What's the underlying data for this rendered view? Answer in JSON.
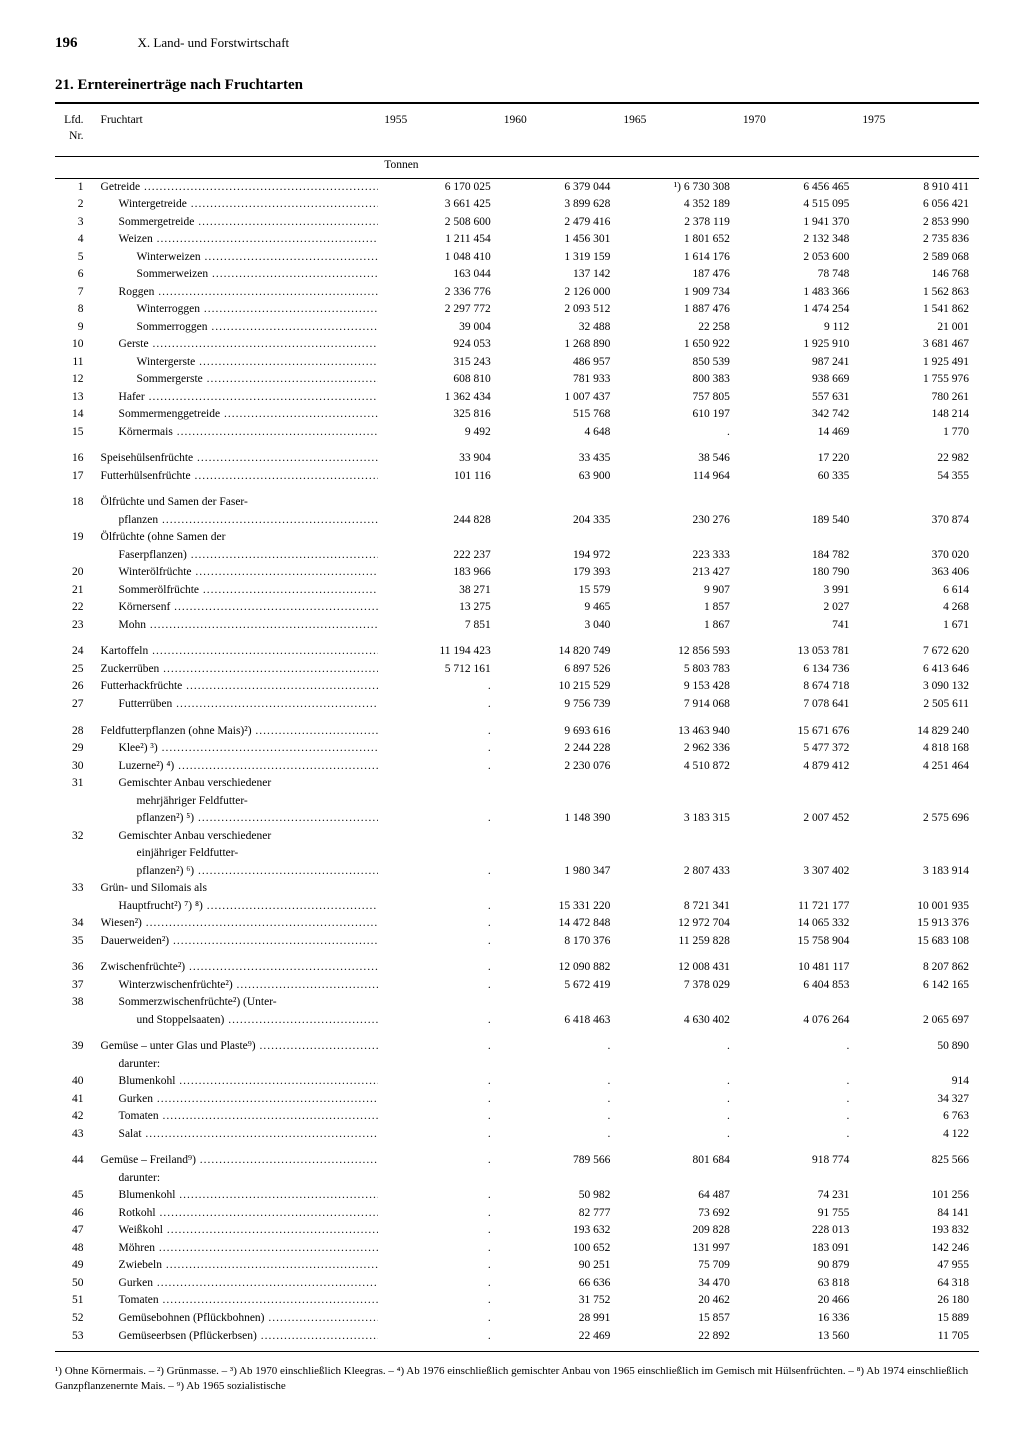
{
  "page_number": "196",
  "chapter": "X. Land- und Forstwirtschaft",
  "title": "21. Erntereinerträge nach Fruchtarten",
  "columns": {
    "nr": "Lfd. Nr.",
    "name": "Fruchtart",
    "y1955": "1955",
    "y1960": "1960",
    "y1965": "1965",
    "y1970": "1970",
    "y1975": "1975",
    "unit": "Tonnen"
  },
  "footnote": "¹) Ohne Körnermais. – ²) Grünmasse. – ³) Ab 1970 einschließlich Kleegras. – ⁴) Ab 1976 einschließlich gemischter Anbau von 1965 einschließlich im Gemisch mit Hülsenfrüchten. – ⁸) Ab 1974 einschließlich Ganzpflanzenernte Mais. – ⁹) Ab 1965 sozialistische",
  "rows": [
    {
      "nr": "1",
      "ind": 0,
      "name": "Getreide",
      "v": [
        "6 170 025",
        "6 379 044",
        "¹) 6 730 308",
        "6 456 465",
        "8 910 411"
      ]
    },
    {
      "nr": "2",
      "ind": 1,
      "name": "Wintergetreide",
      "v": [
        "3 661 425",
        "3 899 628",
        "4 352 189",
        "4 515 095",
        "6 056 421"
      ]
    },
    {
      "nr": "3",
      "ind": 1,
      "name": "Sommergetreide",
      "v": [
        "2 508 600",
        "2 479 416",
        "2 378 119",
        "1 941 370",
        "2 853 990"
      ]
    },
    {
      "nr": "4",
      "ind": 1,
      "name": "Weizen",
      "v": [
        "1 211 454",
        "1 456 301",
        "1 801 652",
        "2 132 348",
        "2 735 836"
      ]
    },
    {
      "nr": "5",
      "ind": 2,
      "name": "Winterweizen",
      "v": [
        "1 048 410",
        "1 319 159",
        "1 614 176",
        "2 053 600",
        "2 589 068"
      ]
    },
    {
      "nr": "6",
      "ind": 2,
      "name": "Sommerweizen",
      "v": [
        "163 044",
        "137 142",
        "187 476",
        "78 748",
        "146 768"
      ]
    },
    {
      "nr": "7",
      "ind": 1,
      "name": "Roggen",
      "v": [
        "2 336 776",
        "2 126 000",
        "1 909 734",
        "1 483 366",
        "1 562 863"
      ]
    },
    {
      "nr": "8",
      "ind": 2,
      "name": "Winterroggen",
      "v": [
        "2 297 772",
        "2 093 512",
        "1 887 476",
        "1 474 254",
        "1 541 862"
      ]
    },
    {
      "nr": "9",
      "ind": 2,
      "name": "Sommerroggen",
      "v": [
        "39 004",
        "32 488",
        "22 258",
        "9 112",
        "21 001"
      ]
    },
    {
      "nr": "10",
      "ind": 1,
      "name": "Gerste",
      "v": [
        "924 053",
        "1 268 890",
        "1 650 922",
        "1 925 910",
        "3 681 467"
      ]
    },
    {
      "nr": "11",
      "ind": 2,
      "name": "Wintergerste",
      "v": [
        "315 243",
        "486 957",
        "850 539",
        "987 241",
        "1 925 491"
      ]
    },
    {
      "nr": "12",
      "ind": 2,
      "name": "Sommergerste",
      "v": [
        "608 810",
        "781 933",
        "800 383",
        "938 669",
        "1 755 976"
      ]
    },
    {
      "nr": "13",
      "ind": 1,
      "name": "Hafer",
      "v": [
        "1 362 434",
        "1 007 437",
        "757 805",
        "557 631",
        "780 261"
      ]
    },
    {
      "nr": "14",
      "ind": 1,
      "name": "Sommermenggetreide",
      "v": [
        "325 816",
        "515 768",
        "610 197",
        "342 742",
        "148 214"
      ]
    },
    {
      "nr": "15",
      "ind": 1,
      "name": "Körnermais",
      "v": [
        "9 492",
        "4 648",
        ".",
        "14 469",
        "1 770"
      ]
    },
    {
      "spacer": true
    },
    {
      "nr": "16",
      "ind": 0,
      "name": "Speisehülsenfrüchte",
      "v": [
        "33 904",
        "33 435",
        "38 546",
        "17 220",
        "22 982"
      ]
    },
    {
      "nr": "17",
      "ind": 0,
      "name": "Futterhülsenfrüchte",
      "v": [
        "101 116",
        "63 900",
        "114 964",
        "60 335",
        "54 355"
      ]
    },
    {
      "spacer": true
    },
    {
      "nr": "18",
      "ind": 0,
      "nodots": true,
      "name": "Ölfrüchte und Samen der Faser-",
      "v": [
        "",
        "",
        "",
        "",
        ""
      ]
    },
    {
      "nr": "",
      "ind": 1,
      "name": "pflanzen",
      "v": [
        "244 828",
        "204 335",
        "230 276",
        "189 540",
        "370 874"
      ]
    },
    {
      "nr": "19",
      "ind": 0,
      "nodots": true,
      "name": "Ölfrüchte (ohne Samen der",
      "v": [
        "",
        "",
        "",
        "",
        ""
      ]
    },
    {
      "nr": "",
      "ind": 1,
      "name": "Faserpflanzen)",
      "v": [
        "222 237",
        "194 972",
        "223 333",
        "184 782",
        "370 020"
      ]
    },
    {
      "nr": "20",
      "ind": 1,
      "name": "Winterölfrüchte",
      "v": [
        "183 966",
        "179 393",
        "213 427",
        "180 790",
        "363 406"
      ]
    },
    {
      "nr": "21",
      "ind": 1,
      "name": "Sommerölfrüchte",
      "v": [
        "38 271",
        "15 579",
        "9 907",
        "3 991",
        "6 614"
      ]
    },
    {
      "nr": "22",
      "ind": 1,
      "name": "Körnersenf",
      "v": [
        "13 275",
        "9 465",
        "1 857",
        "2 027",
        "4 268"
      ]
    },
    {
      "nr": "23",
      "ind": 1,
      "name": "Mohn",
      "v": [
        "7 851",
        "3 040",
        "1 867",
        "741",
        "1 671"
      ]
    },
    {
      "spacer": true
    },
    {
      "nr": "24",
      "ind": 0,
      "name": "Kartoffeln",
      "v": [
        "11 194 423",
        "14 820 749",
        "12 856 593",
        "13 053 781",
        "7 672 620"
      ]
    },
    {
      "nr": "25",
      "ind": 0,
      "name": "Zuckerrüben",
      "v": [
        "5 712 161",
        "6 897 526",
        "5 803 783",
        "6 134 736",
        "6 413 646"
      ]
    },
    {
      "nr": "26",
      "ind": 0,
      "name": "Futterhackfrüchte",
      "v": [
        ".",
        "10 215 529",
        "9 153 428",
        "8 674 718",
        "3 090 132"
      ]
    },
    {
      "nr": "27",
      "ind": 1,
      "name": "Futterrüben",
      "v": [
        ".",
        "9 756 739",
        "7 914 068",
        "7 078 641",
        "2 505 611"
      ]
    },
    {
      "spacer": true
    },
    {
      "nr": "28",
      "ind": 0,
      "name": "Feldfutterpflanzen (ohne Mais)²)",
      "v": [
        ".",
        "9 693 616",
        "13 463 940",
        "15 671 676",
        "14 829 240"
      ]
    },
    {
      "nr": "29",
      "ind": 1,
      "name": "Klee²) ³)",
      "v": [
        ".",
        "2 244 228",
        "2 962 336",
        "5 477 372",
        "4 818 168"
      ]
    },
    {
      "nr": "30",
      "ind": 1,
      "name": "Luzerne²) ⁴)",
      "v": [
        ".",
        "2 230 076",
        "4 510 872",
        "4 879 412",
        "4 251 464"
      ]
    },
    {
      "nr": "31",
      "ind": 1,
      "nodots": true,
      "name": "Gemischter Anbau verschiedener",
      "v": [
        "",
        "",
        "",
        "",
        ""
      ]
    },
    {
      "nr": "",
      "ind": 2,
      "nodots": true,
      "name": "mehrjähriger Feldfutter-",
      "v": [
        "",
        "",
        "",
        "",
        ""
      ]
    },
    {
      "nr": "",
      "ind": 2,
      "name": "pflanzen²) ⁵)",
      "v": [
        ".",
        "1 148 390",
        "3 183 315",
        "2 007 452",
        "2 575 696"
      ]
    },
    {
      "nr": "32",
      "ind": 1,
      "nodots": true,
      "name": "Gemischter Anbau verschiedener",
      "v": [
        "",
        "",
        "",
        "",
        ""
      ]
    },
    {
      "nr": "",
      "ind": 2,
      "nodots": true,
      "name": "einjähriger Feldfutter-",
      "v": [
        "",
        "",
        "",
        "",
        ""
      ]
    },
    {
      "nr": "",
      "ind": 2,
      "name": "pflanzen²) ⁶)",
      "v": [
        ".",
        "1 980 347",
        "2 807 433",
        "3 307 402",
        "3 183 914"
      ]
    },
    {
      "nr": "33",
      "ind": 0,
      "nodots": true,
      "name": "Grün- und Silomais als",
      "v": [
        "",
        "",
        "",
        "",
        ""
      ]
    },
    {
      "nr": "",
      "ind": 1,
      "name": "Hauptfrucht²) ⁷) ⁸)",
      "v": [
        ".",
        "15 331 220",
        "8 721 341",
        "11 721 177",
        "10 001 935"
      ]
    },
    {
      "nr": "34",
      "ind": 0,
      "name": "Wiesen²)",
      "v": [
        ".",
        "14 472 848",
        "12 972 704",
        "14 065 332",
        "15 913 376"
      ]
    },
    {
      "nr": "35",
      "ind": 0,
      "name": "Dauerweiden²)",
      "v": [
        ".",
        "8 170 376",
        "11 259 828",
        "15 758 904",
        "15 683 108"
      ]
    },
    {
      "spacer": true
    },
    {
      "nr": "36",
      "ind": 0,
      "name": "Zwischenfrüchte²)",
      "v": [
        ".",
        "12 090 882",
        "12 008 431",
        "10 481 117",
        "8 207 862"
      ]
    },
    {
      "nr": "37",
      "ind": 1,
      "name": "Winterzwischenfrüchte²)",
      "v": [
        ".",
        "5 672 419",
        "7 378 029",
        "6 404 853",
        "6 142 165"
      ]
    },
    {
      "nr": "38",
      "ind": 1,
      "nodots": true,
      "name": "Sommerzwischenfrüchte²) (Unter-",
      "v": [
        "",
        "",
        "",
        "",
        ""
      ]
    },
    {
      "nr": "",
      "ind": 2,
      "name": "und Stoppelsaaten)",
      "v": [
        ".",
        "6 418 463",
        "4 630 402",
        "4 076 264",
        "2 065 697"
      ]
    },
    {
      "spacer": true
    },
    {
      "nr": "39",
      "ind": 0,
      "name": "Gemüse – unter Glas und Plaste⁹)",
      "v": [
        ".",
        ".",
        ".",
        ".",
        "50 890"
      ]
    },
    {
      "nr": "",
      "ind": 1,
      "nodots": true,
      "name": "darunter:",
      "v": [
        "",
        "",
        "",
        "",
        ""
      ]
    },
    {
      "nr": "40",
      "ind": 1,
      "name": "Blumenkohl",
      "v": [
        ".",
        ".",
        ".",
        ".",
        "914"
      ]
    },
    {
      "nr": "41",
      "ind": 1,
      "name": "Gurken",
      "v": [
        ".",
        ".",
        ".",
        ".",
        "34 327"
      ]
    },
    {
      "nr": "42",
      "ind": 1,
      "name": "Tomaten",
      "v": [
        ".",
        ".",
        ".",
        ".",
        "6 763"
      ]
    },
    {
      "nr": "43",
      "ind": 1,
      "name": "Salat",
      "v": [
        ".",
        ".",
        ".",
        ".",
        "4 122"
      ]
    },
    {
      "spacer": true
    },
    {
      "nr": "44",
      "ind": 0,
      "name": "Gemüse – Freiland⁹)",
      "v": [
        ".",
        "789 566",
        "801 684",
        "918 774",
        "825 566"
      ]
    },
    {
      "nr": "",
      "ind": 1,
      "nodots": true,
      "name": "darunter:",
      "v": [
        "",
        "",
        "",
        "",
        ""
      ]
    },
    {
      "nr": "45",
      "ind": 1,
      "name": "Blumenkohl",
      "v": [
        ".",
        "50 982",
        "64 487",
        "74 231",
        "101 256"
      ]
    },
    {
      "nr": "46",
      "ind": 1,
      "name": "Rotkohl",
      "v": [
        ".",
        "82 777",
        "73 692",
        "91 755",
        "84 141"
      ]
    },
    {
      "nr": "47",
      "ind": 1,
      "name": "Weißkohl",
      "v": [
        ".",
        "193 632",
        "209 828",
        "228 013",
        "193 832"
      ]
    },
    {
      "nr": "48",
      "ind": 1,
      "name": "Möhren",
      "v": [
        ".",
        "100 652",
        "131 997",
        "183 091",
        "142 246"
      ]
    },
    {
      "nr": "49",
      "ind": 1,
      "name": "Zwiebeln",
      "v": [
        ".",
        "90 251",
        "75 709",
        "90 879",
        "47 955"
      ]
    },
    {
      "nr": "50",
      "ind": 1,
      "name": "Gurken",
      "v": [
        ".",
        "66 636",
        "34 470",
        "63 818",
        "64 318"
      ]
    },
    {
      "nr": "51",
      "ind": 1,
      "name": "Tomaten",
      "v": [
        ".",
        "31 752",
        "20 462",
        "20 466",
        "26 180"
      ]
    },
    {
      "nr": "52",
      "ind": 1,
      "name": "Gemüsebohnen (Pflückbohnen)",
      "v": [
        ".",
        "28 991",
        "15 857",
        "16 336",
        "15 889"
      ]
    },
    {
      "nr": "53",
      "ind": 1,
      "name": "Gemüseerbsen (Pflückerbsen)",
      "v": [
        ".",
        "22 469",
        "22 892",
        "13 560",
        "11 705"
      ]
    }
  ]
}
